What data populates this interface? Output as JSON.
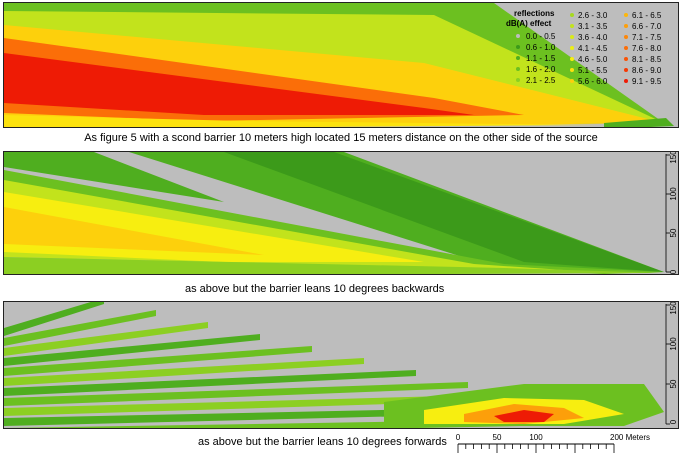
{
  "legend": {
    "title_line1": "reflections",
    "title_line2": "dB(A) effect",
    "items": [
      {
        "label": "0.0 - 0.5",
        "color": "#bdbdbd"
      },
      {
        "label": "0.6 - 1.0",
        "color": "#3c9a1a"
      },
      {
        "label": "1.1 - 1.5",
        "color": "#4fae1f"
      },
      {
        "label": "1.6 - 2.0",
        "color": "#6cc020"
      },
      {
        "label": "2.1 - 2.5",
        "color": "#8ccf22"
      },
      {
        "label": "2.6 - 3.0",
        "color": "#a6d91f"
      },
      {
        "label": "3.1 - 3.5",
        "color": "#c2e31c"
      },
      {
        "label": "3.6 - 4.0",
        "color": "#d9ea18"
      },
      {
        "label": "4.1 - 4.5",
        "color": "#ecef14"
      },
      {
        "label": "4.6 - 5.0",
        "color": "#f7ee10"
      },
      {
        "label": "5.1 - 5.5",
        "color": "#fce20e"
      },
      {
        "label": "5.6 - 6.0",
        "color": "#fdd00c"
      },
      {
        "label": "6.1 - 6.5",
        "color": "#fdb70b"
      },
      {
        "label": "6.6 - 7.0",
        "color": "#fd9f0a"
      },
      {
        "label": "7.1 - 7.5",
        "color": "#fc8709"
      },
      {
        "label": "7.6 - 8.0",
        "color": "#fb6e08"
      },
      {
        "label": "8.1 - 8.5",
        "color": "#f95407"
      },
      {
        "label": "8.6 - 9.0",
        "color": "#f53a06"
      },
      {
        "label": "9.1 - 9.5",
        "color": "#ee1b05"
      }
    ]
  },
  "captions": {
    "panel1": "As figure 5 with a scond barrier 10 meters high located 15 meters distance on the other side of the source",
    "panel2": "as above but the barrier leans 10 degrees backwards",
    "panel3": "as above but the barrier leans 10 degrees forwards"
  },
  "axis_ticks": [
    "0",
    "50",
    "100",
    "150"
  ],
  "scale_bar": {
    "labels": [
      "0",
      "50",
      "100",
      "200 Meters"
    ]
  },
  "colors": {
    "background_gray": "#bdbdbd",
    "green_dark": "#3c9a1a",
    "green_light": "#8ccf22",
    "yellow": "#f7ee10",
    "orange": "#fd9f0a",
    "red": "#ee1b05"
  }
}
